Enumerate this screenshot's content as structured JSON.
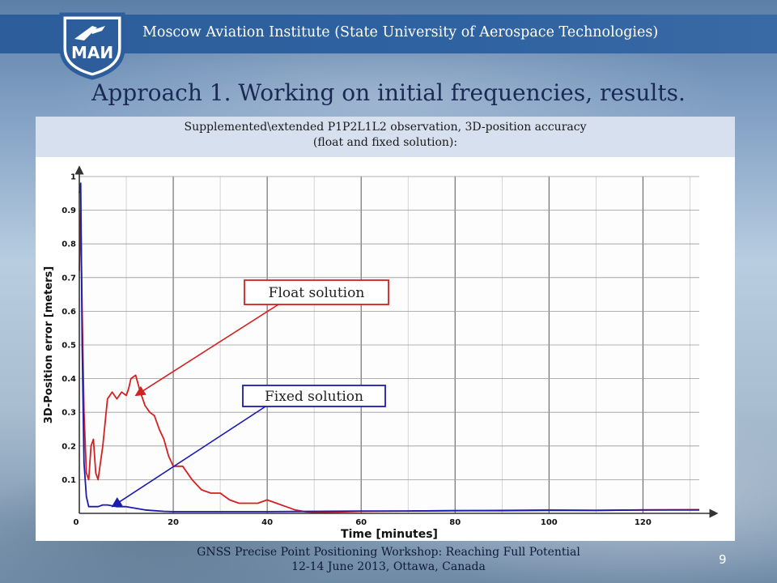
{
  "header": {
    "institute": "Moscow Aviation Institute (State University of Aerospace Technologies)",
    "logo_text": "МАИ"
  },
  "slide": {
    "title": "Approach 1. Working on initial frequencies, results.",
    "subtitle_line1": "Supplemented\\extended P1P2L1L2 observation, 3D-position accuracy",
    "subtitle_line2": "(float and fixed solution):"
  },
  "footer": {
    "line1": "GNSS Precise Point Positioning Workshop: Reaching Full Potential",
    "line2": "12-14 June 2013, Ottawa, Canada",
    "page_number": "9"
  },
  "colors": {
    "float": "#d42020",
    "fixed": "#1b1bb0",
    "band": "#2d5e9b"
  },
  "chart_data": {
    "type": "line",
    "xlabel": "Time [minutes]",
    "ylabel": "3D-Position error [meters]",
    "xlim": [
      0,
      132
    ],
    "ylim": [
      0,
      1
    ],
    "xticks": [
      0,
      20,
      40,
      60,
      80,
      100,
      120
    ],
    "yticks": [
      0.1,
      0.2,
      0.3,
      0.4,
      0.5,
      0.6,
      0.7,
      0.8,
      0.9,
      1
    ],
    "xtick_labels": [
      "0",
      "20",
      "40",
      "60",
      "80",
      "100",
      "120"
    ],
    "ytick_labels": [
      "0.1",
      "0.2",
      "0.3",
      "0.4",
      "0.5",
      "0.6",
      "0.7",
      "0.8",
      "0.9",
      "1"
    ],
    "grid": true,
    "series": [
      {
        "name": "Float solution",
        "x": [
          0,
          0.3,
          0.6,
          1,
          1.5,
          2,
          2.5,
          3,
          3.5,
          4,
          5,
          6,
          7,
          8,
          9,
          10,
          10.5,
          11,
          12,
          13,
          14,
          15,
          16,
          17,
          18,
          19,
          20,
          22,
          24,
          26,
          28,
          30,
          32,
          34,
          36,
          38,
          40,
          42,
          44,
          46,
          48,
          50,
          55,
          60,
          70,
          80,
          90,
          100,
          110,
          120,
          132
        ],
        "y": [
          0.72,
          0.9,
          0.6,
          0.3,
          0.12,
          0.1,
          0.2,
          0.22,
          0.12,
          0.1,
          0.2,
          0.34,
          0.36,
          0.34,
          0.36,
          0.35,
          0.37,
          0.4,
          0.41,
          0.36,
          0.32,
          0.3,
          0.29,
          0.25,
          0.22,
          0.17,
          0.14,
          0.14,
          0.1,
          0.07,
          0.06,
          0.06,
          0.04,
          0.03,
          0.03,
          0.03,
          0.04,
          0.03,
          0.02,
          0.01,
          0.005,
          0.003,
          0.004,
          0.006,
          0.007,
          0.008,
          0.009,
          0.01,
          0.009,
          0.01,
          0.011
        ]
      },
      {
        "name": "Fixed solution",
        "x": [
          0,
          0.3,
          0.6,
          1,
          1.5,
          2,
          2.5,
          3,
          4,
          5,
          6,
          8,
          10,
          12,
          14,
          16,
          18,
          20,
          30,
          40,
          50,
          60,
          70,
          80,
          90,
          100,
          110,
          120,
          132
        ],
        "y": [
          0.95,
          0.98,
          0.5,
          0.15,
          0.05,
          0.02,
          0.02,
          0.02,
          0.02,
          0.025,
          0.025,
          0.02,
          0.02,
          0.015,
          0.01,
          0.008,
          0.006,
          0.005,
          0.005,
          0.005,
          0.006,
          0.007,
          0.007,
          0.008,
          0.008,
          0.009,
          0.009,
          0.01,
          0.01
        ]
      }
    ],
    "annotations": [
      {
        "text": "Float solution",
        "series": "Float solution",
        "arrow_to": [
          12,
          0.35
        ]
      },
      {
        "text": "Fixed solution",
        "series": "Fixed solution",
        "arrow_to": [
          7,
          0.02
        ]
      }
    ]
  }
}
